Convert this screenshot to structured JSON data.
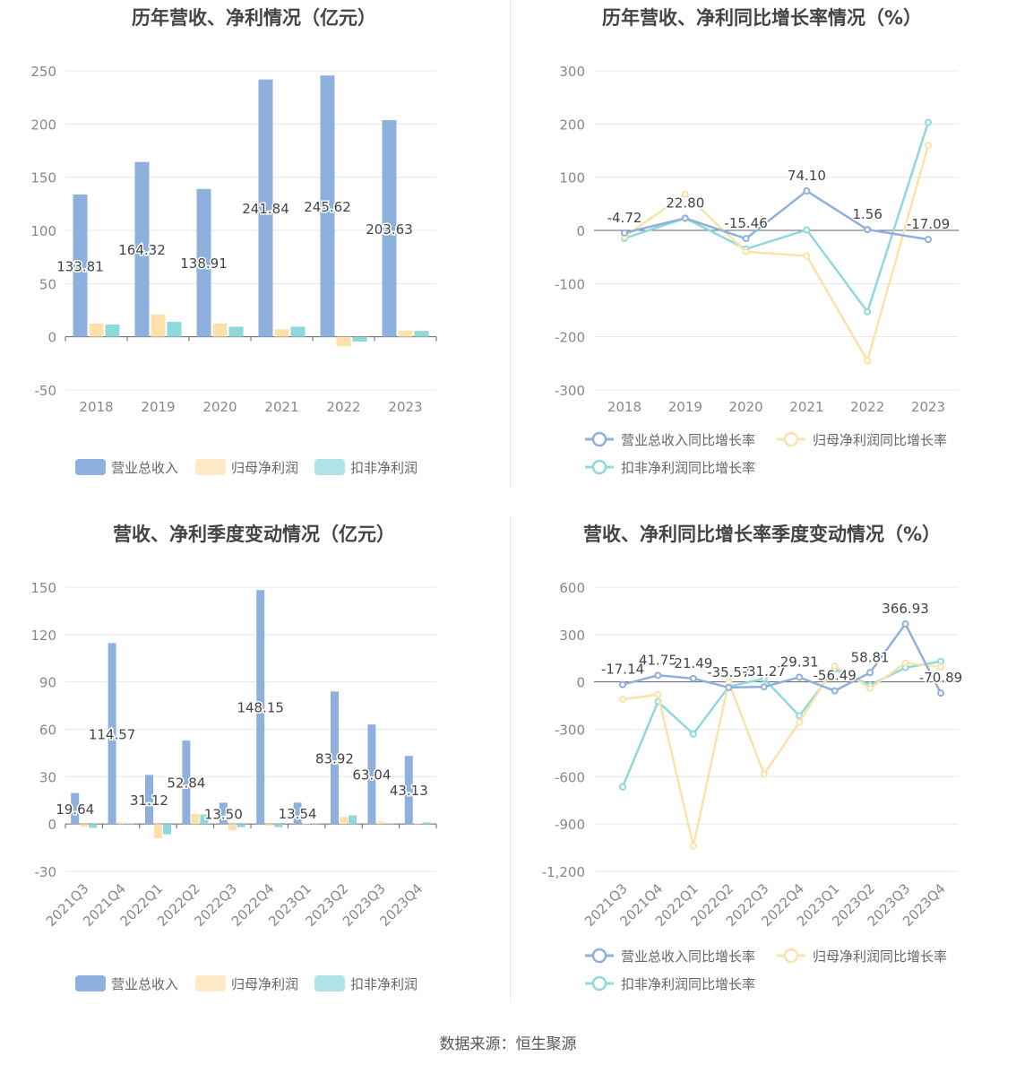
{
  "source_text": "数据来源：恒生聚源",
  "colors": {
    "revenue": "#8eb0dc",
    "net_profit": "#fde1ab",
    "deducted_profit": "#8fd9dc",
    "axis_text": "#888888",
    "grid": "#e4e8f0",
    "label": "#444444"
  },
  "chart_data": [
    {
      "type": "bar",
      "title": "历年营收、净利情况（亿元）",
      "categories": [
        "2018",
        "2019",
        "2020",
        "2021",
        "2022",
        "2023"
      ],
      "series": [
        {
          "name": "营业总收入",
          "values": [
            133.81,
            164.32,
            138.91,
            241.84,
            245.62,
            203.63
          ],
          "labels": [
            "133.81",
            "164.32",
            "138.91",
            "241.84",
            "245.62",
            "203.63"
          ]
        },
        {
          "name": "归母净利润",
          "values": [
            12.5,
            21.0,
            12.5,
            7.0,
            -9.0,
            5.5
          ]
        },
        {
          "name": "扣非净利润",
          "values": [
            11.5,
            14.0,
            9.5,
            9.5,
            -4.5,
            5.5
          ]
        }
      ],
      "ylim": [
        -50,
        250
      ],
      "yticks": [
        -50,
        0,
        50,
        100,
        150,
        200,
        250
      ],
      "ytick_labels": [
        "-50",
        "0",
        "50",
        "100",
        "150",
        "200",
        "250"
      ],
      "legend_position": "bottom"
    },
    {
      "type": "line",
      "title": "历年营收、净利同比增长率情况（%）",
      "categories": [
        "2018",
        "2019",
        "2020",
        "2021",
        "2022",
        "2023"
      ],
      "series": [
        {
          "name": "营业总收入同比增长率",
          "values": [
            -4.72,
            22.8,
            -15.46,
            74.1,
            1.56,
            -17.09
          ],
          "labels": [
            "-4.72",
            "22.80",
            "-15.46",
            "74.10",
            "1.56",
            "-17.09"
          ]
        },
        {
          "name": "归母净利润同比增长率",
          "values": [
            -12,
            68,
            -40,
            -48,
            -245,
            160
          ]
        },
        {
          "name": "扣非净利润同比增长率",
          "values": [
            -15,
            23,
            -35,
            1,
            -153,
            203
          ]
        }
      ],
      "ylim": [
        -300,
        300
      ],
      "yticks": [
        -300,
        -200,
        -100,
        0,
        100,
        200,
        300
      ],
      "ytick_labels": [
        "-300",
        "-200",
        "-100",
        "0",
        "100",
        "200",
        "300"
      ],
      "legend_position": "bottom"
    },
    {
      "type": "bar",
      "title": "营收、净利季度变动情况（亿元）",
      "categories": [
        "2021Q3",
        "2021Q4",
        "2022Q1",
        "2022Q2",
        "2022Q3",
        "2022Q4",
        "2023Q1",
        "2023Q2",
        "2023Q3",
        "2023Q4"
      ],
      "series": [
        {
          "name": "营业总收入",
          "values": [
            19.64,
            114.57,
            31.12,
            52.84,
            13.5,
            148.15,
            13.54,
            83.92,
            63.04,
            43.13
          ],
          "labels": [
            "19.64",
            "114.57",
            "31.12",
            "52.84",
            "13.50",
            "148.15",
            "13.54",
            "83.92",
            "63.04",
            "43.13"
          ]
        },
        {
          "name": "归母净利润",
          "values": [
            -1.5,
            1.0,
            -9.0,
            6.5,
            -4.0,
            -1.0,
            0.5,
            4.5,
            1.5,
            0.5
          ]
        },
        {
          "name": "扣非净利润",
          "values": [
            -2.5,
            0.3,
            -6.5,
            6.0,
            -2.0,
            -2.0,
            0.3,
            5.5,
            0.3,
            1.0
          ]
        }
      ],
      "ylim": [
        -30,
        150
      ],
      "yticks": [
        -30,
        0,
        30,
        60,
        90,
        120,
        150
      ],
      "ytick_labels": [
        "-30",
        "0",
        "30",
        "60",
        "90",
        "120",
        "150"
      ],
      "legend_position": "bottom"
    },
    {
      "type": "line",
      "title": "营收、净利同比增长率季度变动情况（%）",
      "categories": [
        "2021Q3",
        "2021Q4",
        "2022Q1",
        "2022Q2",
        "2022Q3",
        "2022Q4",
        "2023Q1",
        "2023Q2",
        "2023Q3",
        "2023Q4"
      ],
      "series": [
        {
          "name": "营业总收入同比增长率",
          "values": [
            -17.14,
            41.75,
            21.49,
            -35.57,
            -31.27,
            29.31,
            -56.49,
            58.81,
            366.93,
            -70.89
          ],
          "labels": [
            "-17.14",
            "41.75",
            "21.49",
            "-35.57",
            "-31.27",
            "29.31",
            "-56.49",
            "58.81",
            "366.93",
            "-70.89"
          ]
        },
        {
          "name": "归母净利润同比增长率",
          "values": [
            -110,
            -80,
            -1040,
            0,
            -585,
            -255,
            100,
            -40,
            120,
            95
          ]
        },
        {
          "name": "扣非净利润同比增长率",
          "values": [
            -665,
            -125,
            -330,
            -30,
            20,
            -215,
            80,
            -20,
            90,
            130
          ]
        }
      ],
      "ylim": [
        -1200,
        600
      ],
      "yticks": [
        -1200,
        -900,
        -600,
        -300,
        0,
        300,
        600
      ],
      "ytick_labels": [
        "-1,200",
        "-900",
        "-600",
        "-300",
        "0",
        "300",
        "600"
      ],
      "legend_position": "bottom"
    }
  ]
}
